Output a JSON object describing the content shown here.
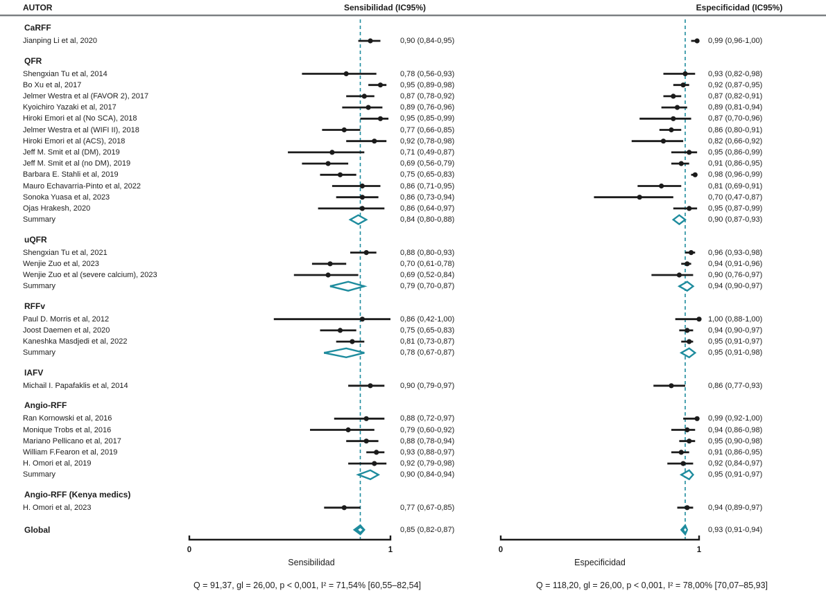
{
  "header": {
    "author": "AUTOR",
    "sens": "Sensibilidad (IC95%)",
    "spec": "Especificidad (IC95%)"
  },
  "axes": {
    "left": {
      "min_label": "0",
      "max_label": "1",
      "title": "Sensibilidad",
      "stats": "Q = 91,37, gl = 26,00, p < 0,001, I² = 71,54% [60,55–82,54]"
    },
    "right": {
      "min_label": "0",
      "max_label": "1",
      "title": "Especificidad",
      "stats": "Q = 118,20, gl = 26,00, p < 0,001, I² = 78,00% [70,07–85,93]"
    }
  },
  "colors": {
    "accent_teal": "#1e8c9e",
    "marker_black": "#1b1b1b",
    "header_rule_gray": "#787c7f"
  },
  "chart_data": {
    "type": "forest",
    "x_range": [
      0,
      1
    ],
    "reference_line": {
      "sens": 0.85,
      "spec": 0.93
    },
    "groups": [
      {
        "name": "CaRFF",
        "rows": [
          {
            "type": "study",
            "label": "Jianping Li et al, 2020",
            "sens": {
              "est": 0.9,
              "lo": 0.84,
              "hi": 0.95,
              "text": "0,90 (0,84-0,95)"
            },
            "spec": {
              "est": 0.99,
              "lo": 0.96,
              "hi": 1.0,
              "text": "0,99 (0,96-1,00)"
            }
          }
        ]
      },
      {
        "name": "QFR",
        "rows": [
          {
            "type": "study",
            "label": "Shengxian Tu et al, 2014",
            "sens": {
              "est": 0.78,
              "lo": 0.56,
              "hi": 0.93,
              "text": "0,78 (0,56-0,93)"
            },
            "spec": {
              "est": 0.93,
              "lo": 0.82,
              "hi": 0.98,
              "text": "0,93 (0,82-0,98)"
            }
          },
          {
            "type": "study",
            "label": "Bo Xu et al, 2017",
            "sens": {
              "est": 0.95,
              "lo": 0.89,
              "hi": 0.98,
              "text": "0,95 (0,89-0,98)"
            },
            "spec": {
              "est": 0.92,
              "lo": 0.87,
              "hi": 0.95,
              "text": "0,92 (0,87-0,95)"
            }
          },
          {
            "type": "study",
            "label": "Jelmer Westra et al (FAVOR 2), 2017",
            "sens": {
              "est": 0.87,
              "lo": 0.78,
              "hi": 0.92,
              "text": "0,87 (0,78-0,92)"
            },
            "spec": {
              "est": 0.87,
              "lo": 0.82,
              "hi": 0.91,
              "text": "0,87 (0,82-0,91)"
            }
          },
          {
            "type": "study",
            "label": "Kyoichiro Yazaki et al, 2017",
            "sens": {
              "est": 0.89,
              "lo": 0.76,
              "hi": 0.96,
              "text": "0,89 (0,76-0,96)"
            },
            "spec": {
              "est": 0.89,
              "lo": 0.81,
              "hi": 0.94,
              "text": "0,89 (0,81-0,94)"
            }
          },
          {
            "type": "study",
            "label": "Hiroki Emori et al (No SCA), 2018",
            "sens": {
              "est": 0.95,
              "lo": 0.85,
              "hi": 0.99,
              "text": "0,95 (0,85-0,99)"
            },
            "spec": {
              "est": 0.87,
              "lo": 0.7,
              "hi": 0.96,
              "text": "0,87 (0,70-0,96)"
            }
          },
          {
            "type": "study",
            "label": "Jelmer Westra et al (WIFI II), 2018",
            "sens": {
              "est": 0.77,
              "lo": 0.66,
              "hi": 0.85,
              "text": "0,77 (0,66-0,85)"
            },
            "spec": {
              "est": 0.86,
              "lo": 0.8,
              "hi": 0.91,
              "text": "0,86 (0,80-0,91)"
            }
          },
          {
            "type": "study",
            "label": "Hiroki Emori et al (ACS), 2018",
            "sens": {
              "est": 0.92,
              "lo": 0.78,
              "hi": 0.98,
              "text": "0,92 (0,78-0,98)"
            },
            "spec": {
              "est": 0.82,
              "lo": 0.66,
              "hi": 0.92,
              "text": "0,82 (0,66-0,92)"
            }
          },
          {
            "type": "study",
            "label": "Jeff M. Smit et al (DM), 2019",
            "sens": {
              "est": 0.71,
              "lo": 0.49,
              "hi": 0.87,
              "text": "0,71 (0,49-0,87)"
            },
            "spec": {
              "est": 0.95,
              "lo": 0.86,
              "hi": 0.99,
              "text": "0,95 (0,86-0,99)"
            }
          },
          {
            "type": "study",
            "label": "Jeff M. Smit et al (no DM), 2019",
            "sens": {
              "est": 0.69,
              "lo": 0.56,
              "hi": 0.79,
              "text": "0,69 (0,56-0,79)"
            },
            "spec": {
              "est": 0.91,
              "lo": 0.86,
              "hi": 0.95,
              "text": "0,91 (0,86-0,95)"
            }
          },
          {
            "type": "study",
            "label": "Barbara E. Stahli et al, 2019",
            "sens": {
              "est": 0.75,
              "lo": 0.65,
              "hi": 0.83,
              "text": "0,75 (0,65-0,83)"
            },
            "spec": {
              "est": 0.98,
              "lo": 0.96,
              "hi": 0.99,
              "text": "0,98 (0,96-0,99)"
            }
          },
          {
            "type": "study",
            "label": "Mauro Echavarria-Pinto et al, 2022",
            "sens": {
              "est": 0.86,
              "lo": 0.71,
              "hi": 0.95,
              "text": "0,86 (0,71-0,95)"
            },
            "spec": {
              "est": 0.81,
              "lo": 0.69,
              "hi": 0.91,
              "text": "0,81 (0,69-0,91)"
            }
          },
          {
            "type": "study",
            "label": "Sonoka Yuasa et al, 2023",
            "sens": {
              "est": 0.86,
              "lo": 0.73,
              "hi": 0.94,
              "text": "0,86 (0,73-0,94)"
            },
            "spec": {
              "est": 0.7,
              "lo": 0.47,
              "hi": 0.87,
              "text": "0,70 (0,47-0,87)"
            }
          },
          {
            "type": "study",
            "label": "Ojas Hrakesh, 2020",
            "sens": {
              "est": 0.86,
              "lo": 0.64,
              "hi": 0.97,
              "text": "0,86 (0,64-0,97)"
            },
            "spec": {
              "est": 0.95,
              "lo": 0.87,
              "hi": 0.99,
              "text": "0,95 (0,87-0,99)"
            }
          },
          {
            "type": "summary",
            "label": "Summary",
            "sens": {
              "est": 0.84,
              "lo": 0.8,
              "hi": 0.88,
              "text": "0,84 (0,80-0,88)"
            },
            "spec": {
              "est": 0.9,
              "lo": 0.87,
              "hi": 0.93,
              "text": "0,90 (0,87-0,93)"
            }
          }
        ]
      },
      {
        "name": "uQFR",
        "rows": [
          {
            "type": "study",
            "label": "Shengxian Tu et al, 2021",
            "sens": {
              "est": 0.88,
              "lo": 0.8,
              "hi": 0.93,
              "text": "0,88 (0,80-0,93)"
            },
            "spec": {
              "est": 0.96,
              "lo": 0.93,
              "hi": 0.98,
              "text": "0,96 (0,93-0,98)"
            }
          },
          {
            "type": "study",
            "label": "Wenjie Zuo et al, 2023",
            "sens": {
              "est": 0.7,
              "lo": 0.61,
              "hi": 0.78,
              "text": "0,70 (0,61-0,78)"
            },
            "spec": {
              "est": 0.94,
              "lo": 0.91,
              "hi": 0.96,
              "text": "0,94 (0,91-0,96)"
            }
          },
          {
            "type": "study",
            "label": "Wenjie Zuo et al (severe calcium), 2023",
            "sens": {
              "est": 0.69,
              "lo": 0.52,
              "hi": 0.84,
              "text": "0,69 (0,52-0,84)"
            },
            "spec": {
              "est": 0.9,
              "lo": 0.76,
              "hi": 0.97,
              "text": "0,90 (0,76-0,97)"
            }
          },
          {
            "type": "summary",
            "label": "Summary",
            "sens": {
              "est": 0.79,
              "lo": 0.7,
              "hi": 0.87,
              "text": "0,79 (0,70-0,87)"
            },
            "spec": {
              "est": 0.94,
              "lo": 0.9,
              "hi": 0.97,
              "text": "0,94 (0,90-0,97)"
            }
          }
        ]
      },
      {
        "name": "RFFv",
        "rows": [
          {
            "type": "study",
            "label": "Paul D. Morris et al, 2012",
            "sens": {
              "est": 0.86,
              "lo": 0.42,
              "hi": 1.0,
              "text": "0,86 (0,42-1,00)"
            },
            "spec": {
              "est": 1.0,
              "lo": 0.88,
              "hi": 1.0,
              "text": "1,00 (0,88-1,00)"
            }
          },
          {
            "type": "study",
            "label": "Joost Daemen et al, 2020",
            "sens": {
              "est": 0.75,
              "lo": 0.65,
              "hi": 0.83,
              "text": "0,75 (0,65-0,83)"
            },
            "spec": {
              "est": 0.94,
              "lo": 0.9,
              "hi": 0.97,
              "text": "0,94 (0,90-0,97)"
            }
          },
          {
            "type": "study",
            "label": "Kaneshka Masdjedi et al, 2022",
            "sens": {
              "est": 0.81,
              "lo": 0.73,
              "hi": 0.87,
              "text": "0,81 (0,73-0,87)"
            },
            "spec": {
              "est": 0.95,
              "lo": 0.91,
              "hi": 0.97,
              "text": "0,95 (0,91-0,97)"
            }
          },
          {
            "type": "summary",
            "label": "Summary",
            "sens": {
              "est": 0.78,
              "lo": 0.67,
              "hi": 0.87,
              "text": "0,78 (0,67-0,87)"
            },
            "spec": {
              "est": 0.95,
              "lo": 0.91,
              "hi": 0.98,
              "text": "0,95 (0,91-0,98)"
            }
          }
        ]
      },
      {
        "name": "IAFV",
        "rows": [
          {
            "type": "study",
            "label": "Michail I. Papafaklis et al, 2014",
            "sens": {
              "est": 0.9,
              "lo": 0.79,
              "hi": 0.97,
              "text": "0,90 (0,79-0,97)"
            },
            "spec": {
              "est": 0.86,
              "lo": 0.77,
              "hi": 0.93,
              "text": "0,86 (0,77-0,93)"
            }
          }
        ]
      },
      {
        "name": "Angio-RFF",
        "rows": [
          {
            "type": "study",
            "label": "Ran Kornowski et al, 2016",
            "sens": {
              "est": 0.88,
              "lo": 0.72,
              "hi": 0.97,
              "text": "0,88 (0,72-0,97)"
            },
            "spec": {
              "est": 0.99,
              "lo": 0.92,
              "hi": 1.0,
              "text": "0,99 (0,92-1,00)"
            }
          },
          {
            "type": "study",
            "label": "Monique Trobs et al, 2016",
            "sens": {
              "est": 0.79,
              "lo": 0.6,
              "hi": 0.92,
              "text": "0,79 (0,60-0,92)"
            },
            "spec": {
              "est": 0.94,
              "lo": 0.86,
              "hi": 0.98,
              "text": "0,94 (0,86-0,98)"
            }
          },
          {
            "type": "study",
            "label": "Mariano Pellicano et al, 2017",
            "sens": {
              "est": 0.88,
              "lo": 0.78,
              "hi": 0.94,
              "text": "0,88 (0,78-0,94)"
            },
            "spec": {
              "est": 0.95,
              "lo": 0.9,
              "hi": 0.98,
              "text": "0,95 (0,90-0,98)"
            }
          },
          {
            "type": "study",
            "label": "William F.Fearon et al, 2019",
            "sens": {
              "est": 0.93,
              "lo": 0.88,
              "hi": 0.97,
              "text": "0,93 (0,88-0,97)"
            },
            "spec": {
              "est": 0.91,
              "lo": 0.86,
              "hi": 0.95,
              "text": "0,91 (0,86-0,95)"
            }
          },
          {
            "type": "study",
            "label": "H. Omori et al, 2019",
            "sens": {
              "est": 0.92,
              "lo": 0.79,
              "hi": 0.98,
              "text": "0,92 (0,79-0,98)"
            },
            "spec": {
              "est": 0.92,
              "lo": 0.84,
              "hi": 0.97,
              "text": "0,92 (0,84-0,97)"
            }
          },
          {
            "type": "summary",
            "label": "Summary",
            "sens": {
              "est": 0.9,
              "lo": 0.84,
              "hi": 0.94,
              "text": "0,90 (0,84-0,94)"
            },
            "spec": {
              "est": 0.95,
              "lo": 0.91,
              "hi": 0.97,
              "text": "0,95 (0,91-0,97)"
            }
          }
        ]
      },
      {
        "name": "Angio-RFF (Kenya medics)",
        "rows": [
          {
            "type": "study",
            "label": "H. Omori et al, 2023",
            "sens": {
              "est": 0.77,
              "lo": 0.67,
              "hi": 0.85,
              "text": "0,77 (0,67-0,85)"
            },
            "spec": {
              "est": 0.94,
              "lo": 0.89,
              "hi": 0.97,
              "text": "0,94 (0,89-0,97)"
            }
          }
        ]
      }
    ],
    "global": {
      "label": "Global",
      "sens": {
        "est": 0.85,
        "lo": 0.82,
        "hi": 0.87,
        "text": "0,85 (0,82-0,87)"
      },
      "spec": {
        "est": 0.93,
        "lo": 0.91,
        "hi": 0.94,
        "text": "0,93 (0,91-0,94)"
      }
    }
  }
}
